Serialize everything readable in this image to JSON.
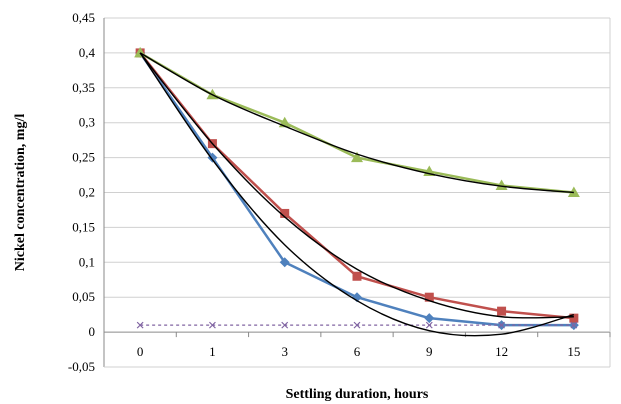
{
  "chart_data": {
    "type": "line",
    "xlabel": "Settling duration, hours",
    "ylabel": "Nickel concentration, mg/l",
    "categories": [
      "0",
      "1",
      "3",
      "6",
      "9",
      "12",
      "15"
    ],
    "ylim": [
      -0.05,
      0.45
    ],
    "y_ticks": [
      "-0,05",
      "0",
      "0,05",
      "0,1",
      "0,15",
      "0,2",
      "0,25",
      "0,3",
      "0,35",
      "0,4",
      "0,45"
    ],
    "y_tick_values": [
      -0.05,
      0,
      0.05,
      0.1,
      0.15,
      0.2,
      0.25,
      0.3,
      0.35,
      0.4,
      0.45
    ],
    "grid": "horizontal",
    "legend": "none",
    "series": [
      {
        "values": [
          0.4,
          0.25,
          0.1,
          0.05,
          0.02,
          0.01,
          0.01
        ],
        "color": "#4f81bd",
        "marker": "diamond"
      },
      {
        "values": [
          0.4,
          0.27,
          0.17,
          0.08,
          0.05,
          0.03,
          0.02
        ],
        "color": "#c0504d",
        "marker": "square"
      },
      {
        "values": [
          0.4,
          0.34,
          0.3,
          0.25,
          0.23,
          0.21,
          0.2
        ],
        "color": "#9bbb59",
        "marker": "triangle"
      },
      {
        "values": [
          0.01,
          0.01,
          0.01,
          0.01,
          0.01,
          0.01,
          0.01
        ],
        "color": "#8064a2",
        "marker": "x",
        "dashed": true
      }
    ],
    "trendlines": [
      {
        "color": "#000000",
        "values": [
          0.4,
          0.247,
          0.125,
          0.045,
          0.002,
          -0.003,
          0.025
        ]
      },
      {
        "color": "#000000",
        "values": [
          0.4,
          0.27,
          0.165,
          0.09,
          0.045,
          0.022,
          0.022
        ]
      },
      {
        "color": "#000000",
        "values": [
          0.4,
          0.34,
          0.295,
          0.255,
          0.227,
          0.209,
          0.2
        ]
      }
    ]
  }
}
